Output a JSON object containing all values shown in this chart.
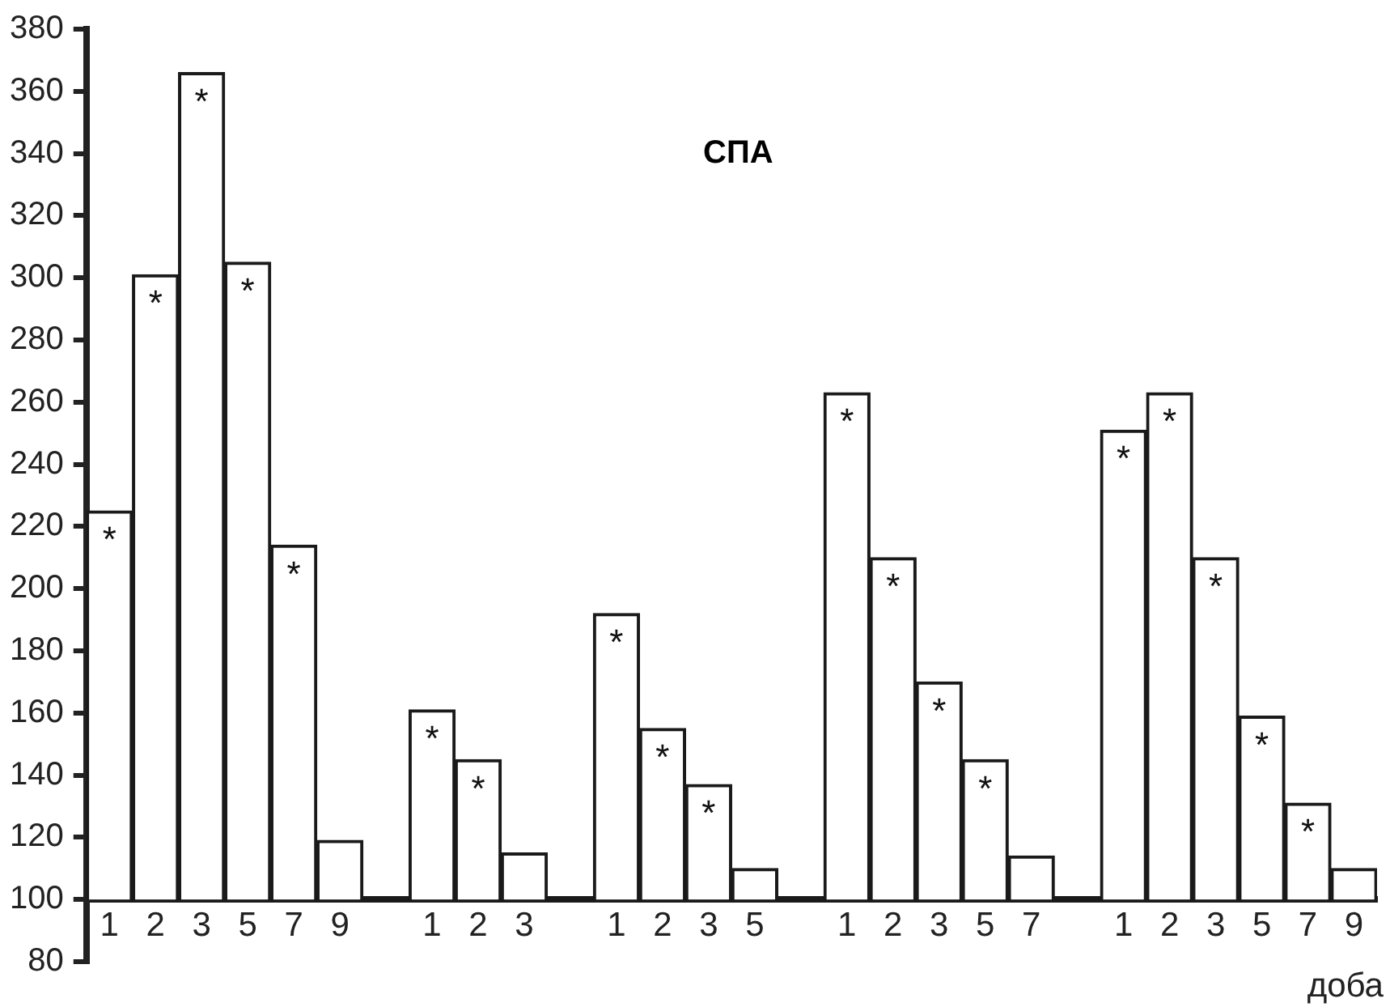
{
  "chart_data": {
    "type": "bar",
    "xlabel": "доба",
    "annotations": [
      "СПА"
    ],
    "categories": [
      "1",
      "2",
      "3",
      "5",
      "7",
      "9",
      null,
      "1",
      "2",
      "3",
      null,
      "1",
      "2",
      "3",
      "5",
      null,
      "1",
      "2",
      "3",
      "5",
      "7",
      null,
      "1",
      "2",
      "3",
      "5",
      "7",
      "9"
    ],
    "base": [
      100,
      100,
      100,
      100,
      100,
      100,
      null,
      100,
      100,
      100,
      null,
      100,
      100,
      100,
      100,
      null,
      100,
      100,
      100,
      100,
      100,
      null,
      100,
      100,
      100,
      100,
      100,
      100
    ],
    "values": [
      125,
      201,
      266,
      205,
      114,
      19,
      null,
      61,
      45,
      15,
      null,
      92,
      55,
      37,
      10,
      null,
      163,
      110,
      70,
      45,
      14,
      null,
      151,
      163,
      110,
      59,
      31,
      10
    ],
    "value_labels": [
      "*",
      "*",
      "*",
      "*",
      "*",
      null,
      null,
      "*",
      "*",
      null,
      null,
      "*",
      "*",
      "*",
      null,
      null,
      "*",
      "*",
      "*",
      "*",
      null,
      null,
      "*",
      "*",
      "*",
      "*",
      "*",
      null
    ],
    "color": "#ffffff",
    "ylim": [
      80,
      380
    ],
    "yticks": [
      80,
      100,
      120,
      140,
      160,
      180,
      200,
      220,
      240,
      260,
      280,
      300,
      320,
      340,
      360,
      380
    ],
    "grid": false,
    "legend": false
  }
}
